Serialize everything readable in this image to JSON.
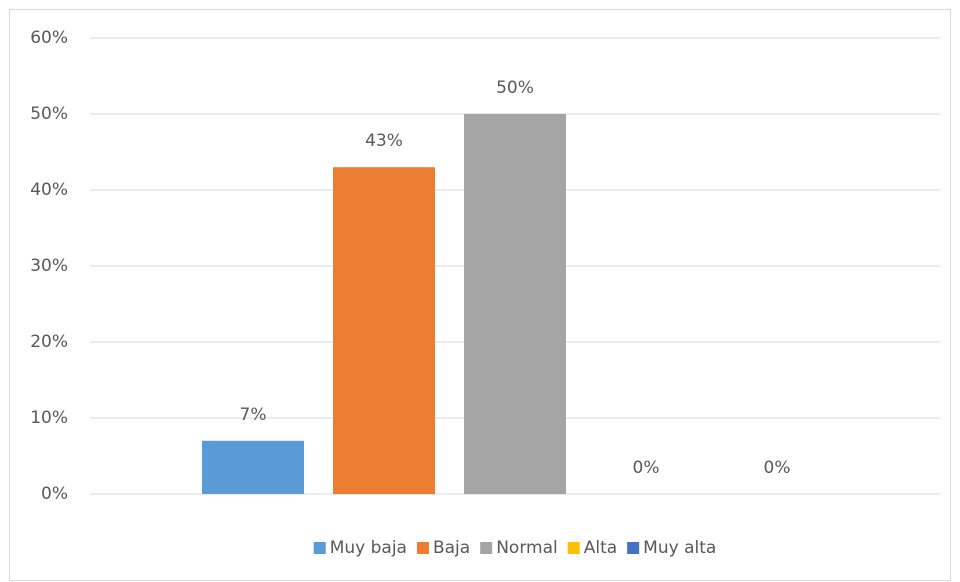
{
  "chart_data": {
    "type": "bar",
    "categories": [
      null
    ],
    "series": [
      {
        "name": "Muy baja",
        "color": "#5b9bd5",
        "values": [
          7
        ],
        "value_labels": [
          "7%"
        ]
      },
      {
        "name": "Baja",
        "color": "#ed7d31",
        "values": [
          43
        ],
        "value_labels": [
          "43%"
        ]
      },
      {
        "name": "Normal",
        "color": "#a5a5a5",
        "values": [
          50
        ],
        "value_labels": [
          "50%"
        ]
      },
      {
        "name": "Alta",
        "color": "#ffc000",
        "values": [
          0
        ],
        "value_labels": [
          "0%"
        ]
      },
      {
        "name": "Muy alta",
        "color": "#4472c4",
        "values": [
          0
        ],
        "value_labels": [
          "0%"
        ]
      }
    ],
    "ylim": [
      0,
      60
    ],
    "yticks": [
      {
        "value": 0,
        "label": "0%"
      },
      {
        "value": 10,
        "label": "10%"
      },
      {
        "value": 20,
        "label": "20%"
      },
      {
        "value": 30,
        "label": "30%"
      },
      {
        "value": 40,
        "label": "40%"
      },
      {
        "value": 50,
        "label": "50%"
      },
      {
        "value": 60,
        "label": "60%"
      }
    ],
    "grid": true,
    "legend": "bottom"
  }
}
